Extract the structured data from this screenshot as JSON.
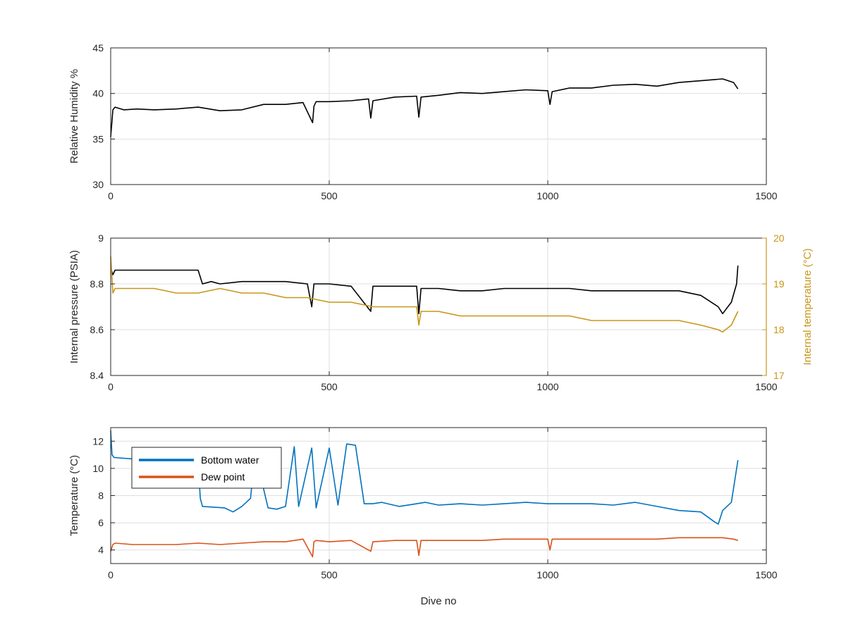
{
  "chart_data": [
    {
      "type": "line",
      "title": "",
      "xlabel": "",
      "ylabel": "Relative Humidity %",
      "xlim": [
        0,
        1500
      ],
      "ylim": [
        30,
        45
      ],
      "xticks": [
        0,
        500,
        1000,
        1500
      ],
      "yticks": [
        30,
        35,
        40,
        45
      ],
      "grid": true,
      "colors": {
        "line": "#000000"
      },
      "series": [
        {
          "x": [
            0,
            5,
            10,
            30,
            60,
            100,
            150,
            200,
            250,
            300,
            350,
            400,
            440,
            462,
            465,
            470,
            500,
            550,
            590,
            595,
            600,
            650,
            700,
            705,
            710,
            750,
            800,
            850,
            900,
            950,
            1000,
            1005,
            1010,
            1050,
            1100,
            1150,
            1200,
            1250,
            1300,
            1350,
            1400,
            1425,
            1435
          ],
          "y": [
            35.2,
            38.2,
            38.5,
            38.2,
            38.3,
            38.2,
            38.3,
            38.5,
            38.1,
            38.2,
            38.8,
            38.8,
            39.0,
            36.8,
            38.6,
            39.1,
            39.1,
            39.2,
            39.4,
            37.3,
            39.2,
            39.6,
            39.7,
            37.4,
            39.6,
            39.8,
            40.1,
            40.0,
            40.2,
            40.4,
            40.3,
            38.8,
            40.2,
            40.6,
            40.6,
            40.9,
            41.0,
            40.8,
            41.2,
            41.4,
            41.6,
            41.2,
            40.5
          ]
        }
      ]
    },
    {
      "type": "line",
      "title": "",
      "xlabel": "",
      "ylabel": "Internal pressure (PSIA)",
      "ylabel_right": "Internal temperature (°C)",
      "xlim": [
        0,
        1500
      ],
      "ylim": [
        8.4,
        9
      ],
      "ylim_right": [
        17,
        20
      ],
      "xticks": [
        0,
        500,
        1000,
        1500
      ],
      "yticks": [
        8.4,
        8.6,
        8.8,
        9
      ],
      "yticks_right": [
        17,
        18,
        19,
        20
      ],
      "grid": true,
      "colors": {
        "left": "#000000",
        "right": "#c8961a"
      },
      "series": [
        {
          "axis": "left",
          "x": [
            0,
            5,
            10,
            50,
            100,
            150,
            200,
            210,
            230,
            250,
            300,
            350,
            400,
            450,
            460,
            465,
            500,
            550,
            595,
            600,
            650,
            700,
            705,
            710,
            750,
            800,
            850,
            900,
            950,
            1000,
            1050,
            1100,
            1150,
            1200,
            1250,
            1300,
            1350,
            1390,
            1400,
            1420,
            1432,
            1435
          ],
          "y": [
            8.87,
            8.84,
            8.86,
            8.86,
            8.86,
            8.86,
            8.86,
            8.8,
            8.81,
            8.8,
            8.81,
            8.81,
            8.81,
            8.8,
            8.7,
            8.8,
            8.8,
            8.79,
            8.68,
            8.79,
            8.79,
            8.79,
            8.67,
            8.78,
            8.78,
            8.77,
            8.77,
            8.78,
            8.78,
            8.78,
            8.78,
            8.77,
            8.77,
            8.77,
            8.77,
            8.77,
            8.75,
            8.7,
            8.67,
            8.72,
            8.8,
            8.88
          ]
        },
        {
          "axis": "right",
          "x": [
            0,
            5,
            10,
            50,
            100,
            150,
            200,
            250,
            300,
            350,
            400,
            450,
            500,
            550,
            600,
            650,
            700,
            705,
            710,
            750,
            800,
            850,
            900,
            950,
            1000,
            1050,
            1100,
            1150,
            1200,
            1250,
            1300,
            1350,
            1390,
            1400,
            1420,
            1435
          ],
          "y": [
            19.6,
            18.8,
            18.9,
            18.9,
            18.9,
            18.8,
            18.8,
            18.9,
            18.8,
            18.8,
            18.7,
            18.7,
            18.6,
            18.6,
            18.5,
            18.5,
            18.5,
            18.1,
            18.4,
            18.4,
            18.3,
            18.3,
            18.3,
            18.3,
            18.3,
            18.3,
            18.2,
            18.2,
            18.2,
            18.2,
            18.2,
            18.1,
            18.0,
            17.95,
            18.1,
            18.4
          ]
        }
      ]
    },
    {
      "type": "line",
      "title": "",
      "xlabel": "Dive no",
      "ylabel": "Temperature (°C)",
      "xlim": [
        0,
        1500
      ],
      "ylim": [
        3,
        13
      ],
      "xticks": [
        0,
        500,
        1000,
        1500
      ],
      "yticks": [
        4,
        6,
        8,
        10,
        12
      ],
      "grid": true,
      "legend": "top-left",
      "series": [
        {
          "name": "Bottom water",
          "color": "#0072bd",
          "x": [
            0,
            3,
            8,
            50,
            100,
            150,
            200,
            205,
            210,
            260,
            280,
            300,
            320,
            330,
            360,
            380,
            400,
            420,
            430,
            460,
            470,
            500,
            520,
            540,
            560,
            580,
            600,
            620,
            660,
            700,
            720,
            750,
            800,
            850,
            900,
            950,
            1000,
            1050,
            1100,
            1150,
            1200,
            1250,
            1300,
            1350,
            1380,
            1390,
            1400,
            1420,
            1435
          ],
          "y": [
            12.8,
            11.0,
            10.8,
            10.7,
            10.6,
            10.5,
            10.5,
            7.8,
            7.2,
            7.1,
            6.8,
            7.2,
            7.8,
            11.2,
            7.1,
            7.0,
            7.2,
            11.6,
            7.2,
            11.5,
            7.1,
            11.5,
            7.3,
            11.8,
            11.7,
            7.4,
            7.4,
            7.5,
            7.2,
            7.4,
            7.5,
            7.3,
            7.4,
            7.3,
            7.4,
            7.5,
            7.4,
            7.4,
            7.4,
            7.3,
            7.5,
            7.2,
            6.9,
            6.8,
            6.1,
            5.9,
            6.9,
            7.5,
            10.6
          ]
        },
        {
          "name": "Dew point",
          "color": "#d95319",
          "x": [
            0,
            5,
            10,
            50,
            100,
            150,
            200,
            250,
            300,
            350,
            400,
            440,
            462,
            465,
            470,
            500,
            550,
            595,
            600,
            650,
            700,
            705,
            710,
            750,
            800,
            850,
            900,
            950,
            1000,
            1005,
            1010,
            1050,
            1100,
            1150,
            1200,
            1250,
            1300,
            1350,
            1400,
            1425,
            1435
          ],
          "y": [
            3.9,
            4.4,
            4.5,
            4.4,
            4.4,
            4.4,
            4.5,
            4.4,
            4.5,
            4.6,
            4.6,
            4.8,
            3.5,
            4.6,
            4.7,
            4.6,
            4.7,
            3.9,
            4.6,
            4.7,
            4.7,
            3.6,
            4.7,
            4.7,
            4.7,
            4.7,
            4.8,
            4.8,
            4.8,
            4.0,
            4.8,
            4.8,
            4.8,
            4.8,
            4.8,
            4.8,
            4.9,
            4.9,
            4.9,
            4.8,
            4.7
          ]
        }
      ]
    }
  ]
}
